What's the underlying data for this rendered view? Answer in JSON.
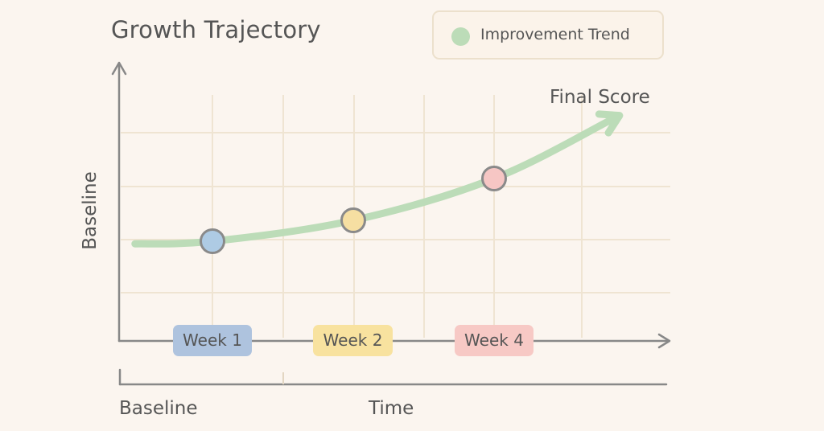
{
  "chart_data": {
    "type": "line",
    "title": "Growth Trajectory",
    "ylabel": "Baseline",
    "xlabel": "Time",
    "x_axis_start_label": "Baseline",
    "end_annotation": "Final Score",
    "grid": true,
    "legend": {
      "placement": "top-right",
      "label": "Improvement Trend",
      "color": "#bcdcb8"
    },
    "categories": [
      "Week 1",
      "Week 2",
      "Week 4"
    ],
    "markers": [
      {
        "label": "Week 1",
        "value": 1.8,
        "fill": "#aecbe4",
        "badge": "#aec3de"
      },
      {
        "label": "Week 2",
        "value": 2.2,
        "fill": "#f6dfa2",
        "badge": "#f8e29f"
      },
      {
        "label": "Week 4",
        "value": 3.0,
        "fill": "#f6c6c4",
        "badge": "#f7c9c5"
      }
    ],
    "series": [
      {
        "name": "Improvement Trend",
        "color": "#bcdcb8",
        "points": [
          {
            "x": 0.45,
            "y": 1.75
          },
          {
            "x": 1.0,
            "y": 1.8
          },
          {
            "x": 2.0,
            "y": 2.2
          },
          {
            "x": 3.0,
            "y": 3.0
          },
          {
            "x": 3.85,
            "y": 4.15
          }
        ]
      }
    ],
    "xlim": [
      0,
      4.5
    ],
    "ylim": [
      0,
      5
    ]
  }
}
